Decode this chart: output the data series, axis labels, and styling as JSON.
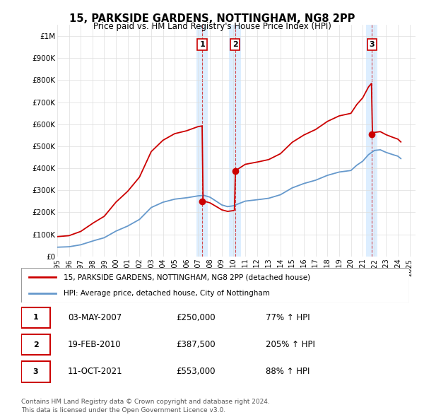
{
  "title": "15, PARKSIDE GARDENS, NOTTINGHAM, NG8 2PP",
  "subtitle": "Price paid vs. HM Land Registry's House Price Index (HPI)",
  "property_label": "15, PARKSIDE GARDENS, NOTTINGHAM, NG8 2PP (detached house)",
  "hpi_label": "HPI: Average price, detached house, City of Nottingham",
  "sales": [
    {
      "label": "1",
      "date": "03-MAY-2007",
      "price": 250000,
      "pct": "77%",
      "dir": "↑",
      "year": 2007.34
    },
    {
      "label": "2",
      "date": "19-FEB-2010",
      "price": 387500,
      "pct": "205%",
      "dir": "↑",
      "year": 2010.13
    },
    {
      "label": "3",
      "date": "11-OCT-2021",
      "price": 553000,
      "pct": "88%",
      "dir": "↑",
      "year": 2021.78
    }
  ],
  "footer1": "Contains HM Land Registry data © Crown copyright and database right 2024.",
  "footer2": "This data is licensed under the Open Government Licence v3.0.",
  "property_color": "#cc0000",
  "hpi_color": "#6699cc",
  "highlight_color": "#ddeeff",
  "ylim": [
    0,
    1050000
  ],
  "xlim_start": 1995.0,
  "xlim_end": 2025.5,
  "yticks": [
    0,
    100000,
    200000,
    300000,
    400000,
    500000,
    600000,
    700000,
    800000,
    900000,
    1000000
  ],
  "ytick_labels": [
    "£0",
    "£100K",
    "£200K",
    "£300K",
    "£400K",
    "£500K",
    "£600K",
    "£700K",
    "£800K",
    "£900K",
    "£1M"
  ],
  "xticks": [
    1995,
    1996,
    1997,
    1998,
    1999,
    2000,
    2001,
    2002,
    2003,
    2004,
    2005,
    2006,
    2007,
    2008,
    2009,
    2010,
    2011,
    2012,
    2013,
    2014,
    2015,
    2016,
    2017,
    2018,
    2019,
    2020,
    2021,
    2022,
    2023,
    2024,
    2025
  ]
}
